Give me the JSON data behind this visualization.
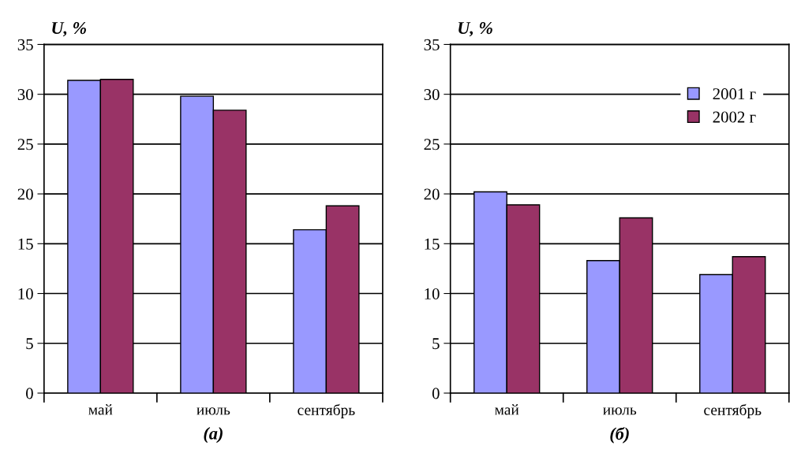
{
  "chart_data": [
    {
      "type": "bar",
      "xlabel": "(а)",
      "ylabel": "U, %",
      "categories": [
        "май",
        "июль",
        "сентябрь"
      ],
      "series": [
        {
          "color": "#9999ff",
          "values": [
            31.4,
            29.8,
            16.4
          ]
        },
        {
          "color": "#993366",
          "values": [
            31.5,
            28.4,
            18.8
          ]
        }
      ],
      "ylim": [
        0,
        35
      ],
      "yticks": [
        0,
        5,
        10,
        15,
        20,
        25,
        30,
        35
      ],
      "grid": "y"
    },
    {
      "type": "bar",
      "xlabel": "(б)",
      "ylabel": "U, %",
      "categories": [
        "май",
        "июль",
        "сентябрь"
      ],
      "series": [
        {
          "name": "2001 г",
          "color": "#9999ff",
          "values": [
            20.2,
            13.3,
            11.9
          ]
        },
        {
          "name": "2002 г",
          "color": "#993366",
          "values": [
            18.9,
            17.6,
            13.7
          ]
        }
      ],
      "ylim": [
        0,
        35
      ],
      "yticks": [
        0,
        5,
        10,
        15,
        20,
        25,
        30,
        35
      ],
      "grid": "y",
      "legend": "top right"
    }
  ]
}
